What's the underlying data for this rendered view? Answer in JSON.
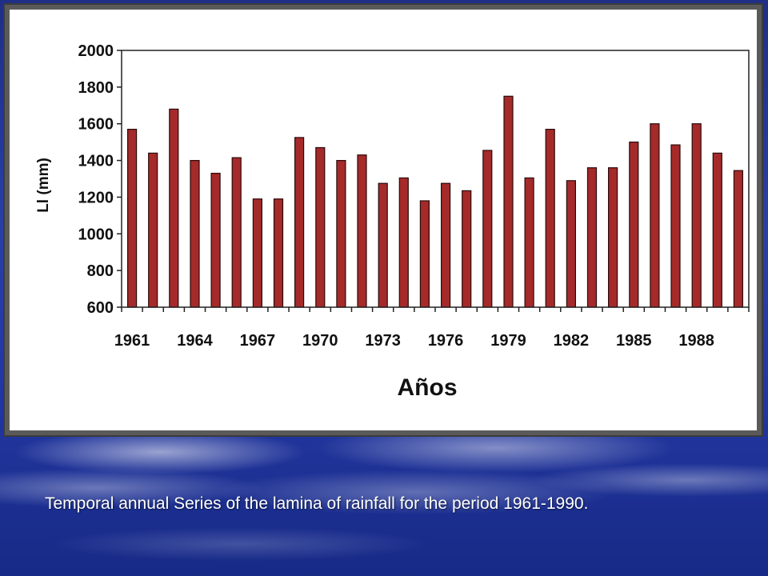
{
  "caption": "Temporal annual Series of the lamina of rainfall for the period  1961-1990.",
  "colors": {
    "bar_fill": "#a52a2a",
    "bar_stroke": "#2b0a0a",
    "background_blue": "#2a3fa6",
    "panel_border": "#5a5a5a"
  },
  "chart_data": {
    "type": "bar",
    "xlabel": "Años",
    "ylabel": "Ll (mm)",
    "ylim": [
      600,
      2000
    ],
    "yticks": [
      600,
      800,
      1000,
      1200,
      1400,
      1600,
      1800,
      2000
    ],
    "xtick_labels": [
      "1961",
      "1964",
      "1967",
      "1970",
      "1973",
      "1976",
      "1979",
      "1982",
      "1985",
      "1988"
    ],
    "grid": false,
    "categories": [
      "1961",
      "1962",
      "1963",
      "1964",
      "1965",
      "1966",
      "1967",
      "1968",
      "1969",
      "1970",
      "1971",
      "1972",
      "1973",
      "1974",
      "1975",
      "1976",
      "1977",
      "1978",
      "1979",
      "1980",
      "1981",
      "1982",
      "1983",
      "1984",
      "1985",
      "1986",
      "1987",
      "1988",
      "1989",
      "1990"
    ],
    "values": [
      1570,
      1440,
      1680,
      1400,
      1330,
      1415,
      1190,
      1190,
      1525,
      1470,
      1400,
      1430,
      1275,
      1305,
      1180,
      1275,
      1235,
      1455,
      1750,
      1305,
      1570,
      1290,
      1360,
      1360,
      1500,
      1600,
      1485,
      1600,
      1440,
      1345
    ]
  }
}
